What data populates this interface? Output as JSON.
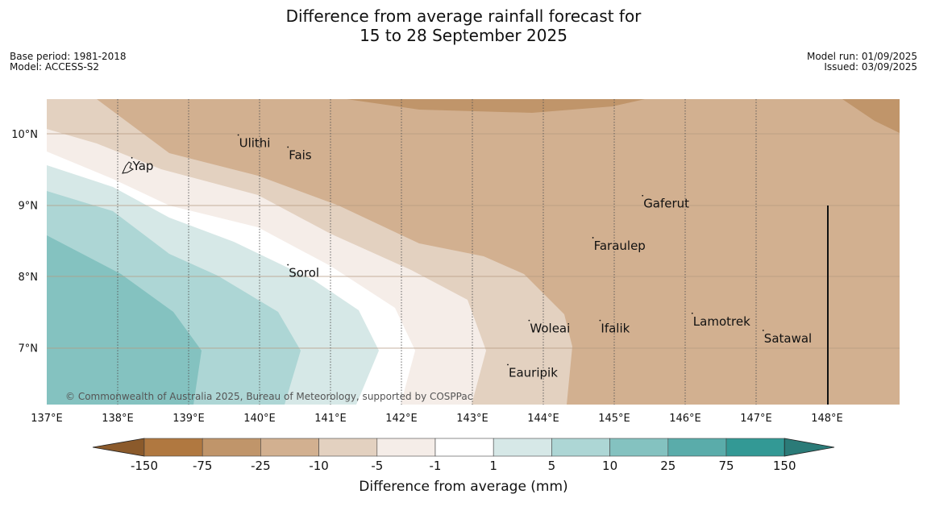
{
  "header": {
    "title_line1": "Difference from average rainfall forecast for",
    "title_line2": "15 to 28 September 2025",
    "base_period": "Base period: 1981-2018",
    "model": "Model: ACCESS-S2",
    "model_run": "Model run: 01/09/2025",
    "issued": "Issued: 03/09/2025"
  },
  "map": {
    "lon_range": [
      137,
      149
    ],
    "lat_range": [
      6.2,
      10.5
    ],
    "x_ticks": [
      "137°E",
      "138°E",
      "139°E",
      "140°E",
      "141°E",
      "142°E",
      "143°E",
      "144°E",
      "145°E",
      "146°E",
      "147°E",
      "148°E"
    ],
    "y_ticks": [
      "10°N",
      "9°N",
      "8°N",
      "7°N"
    ],
    "copyright": "© Commonwealth of Australia 2025, Bureau of Meteorology, supported by COSPPac",
    "places": [
      {
        "name": "Yap",
        "lon": 138.2,
        "lat": 9.55
      },
      {
        "name": "Ulithi",
        "lon": 139.7,
        "lat": 9.87
      },
      {
        "name": "Fais",
        "lon": 140.4,
        "lat": 9.7
      },
      {
        "name": "Gaferut",
        "lon": 145.4,
        "lat": 9.02
      },
      {
        "name": "Faraulep",
        "lon": 144.7,
        "lat": 8.43
      },
      {
        "name": "Sorol",
        "lon": 140.4,
        "lat": 8.05
      },
      {
        "name": "Lamotrek",
        "lon": 146.1,
        "lat": 7.37
      },
      {
        "name": "Woleai",
        "lon": 143.8,
        "lat": 7.27
      },
      {
        "name": "Ifalik",
        "lon": 144.8,
        "lat": 7.27
      },
      {
        "name": "Satawal",
        "lon": 147.1,
        "lat": 7.13
      },
      {
        "name": "Eauripik",
        "lon": 143.5,
        "lat": 6.65
      }
    ]
  },
  "colorbar": {
    "title": "Difference from average (mm)",
    "labels": [
      "-150",
      "-75",
      "-25",
      "-10",
      "-5",
      "-1",
      "1",
      "5",
      "10",
      "25",
      "75",
      "150"
    ],
    "colors": [
      "#b07840",
      "#c0956a",
      "#d2b090",
      "#e3d1c0",
      "#f5ede8",
      "#ffffff",
      "#d6e8e7",
      "#add6d5",
      "#84c2c0",
      "#5aacaa",
      "#339995"
    ],
    "extend_low": "#8b5a2b",
    "extend_high": "#2b7b78"
  }
}
